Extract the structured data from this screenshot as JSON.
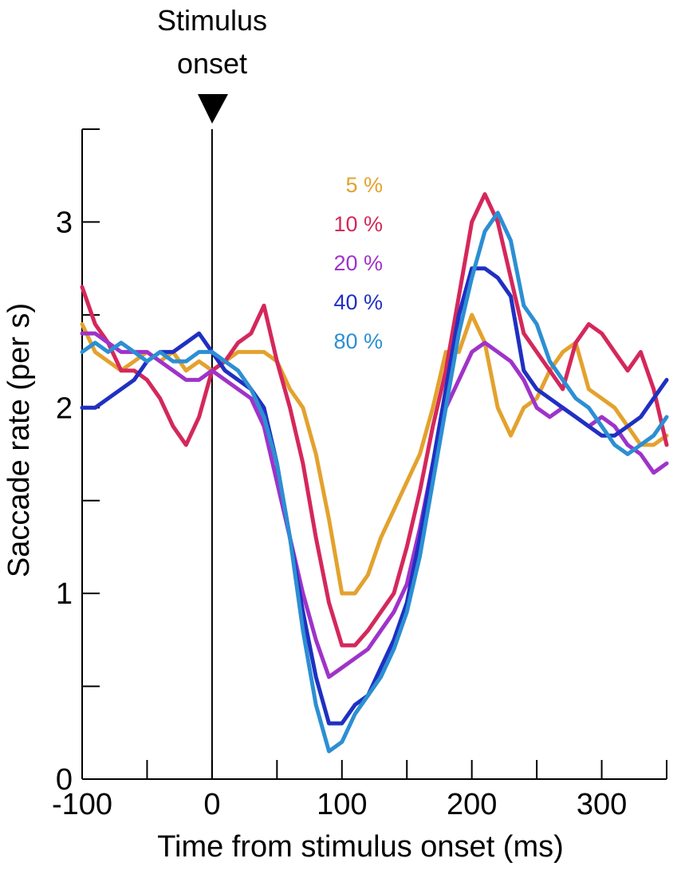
{
  "chart_data": {
    "type": "line",
    "title": "",
    "xlabel": "Time from stimulus onset (ms)",
    "ylabel": "Saccade rate (per s)",
    "xlim": [
      -100,
      350
    ],
    "ylim": [
      0,
      3.5
    ],
    "x_ticks": [
      -100,
      -50,
      0,
      50,
      100,
      150,
      200,
      250,
      300,
      350
    ],
    "x_tick_labels": [
      "-100",
      "0",
      "100",
      "200",
      "300"
    ],
    "x_tick_label_values": [
      -100,
      0,
      100,
      200,
      300
    ],
    "y_ticks": [
      0,
      0.5,
      1,
      1.5,
      2,
      2.5,
      3,
      3.5
    ],
    "y_tick_labels": [
      "0",
      "1",
      "2",
      "3"
    ],
    "y_tick_label_values": [
      0,
      1,
      2,
      3
    ],
    "grid": false,
    "legend_placement": "top-center",
    "annotation": {
      "label_line1": "Stimulus",
      "label_line2": "onset",
      "x": 0
    },
    "x": [
      -100,
      -90,
      -80,
      -70,
      -60,
      -50,
      -40,
      -30,
      -20,
      -10,
      0,
      10,
      20,
      30,
      40,
      50,
      60,
      70,
      80,
      90,
      100,
      110,
      120,
      130,
      140,
      150,
      160,
      170,
      180,
      190,
      200,
      210,
      220,
      230,
      240,
      250,
      260,
      270,
      280,
      290,
      300,
      310,
      320,
      330,
      340,
      350
    ],
    "series": [
      {
        "name": "5 %",
        "color": "#E3A22E",
        "values": [
          2.45,
          2.3,
          2.25,
          2.2,
          2.25,
          2.3,
          2.25,
          2.3,
          2.2,
          2.25,
          2.2,
          2.25,
          2.3,
          2.3,
          2.3,
          2.25,
          2.1,
          2.0,
          1.75,
          1.4,
          1.0,
          1.0,
          1.1,
          1.3,
          1.45,
          1.6,
          1.75,
          2.0,
          2.3,
          2.3,
          2.5,
          2.35,
          2.0,
          1.85,
          2.0,
          2.05,
          2.2,
          2.3,
          2.35,
          2.1,
          2.05,
          2.0,
          1.9,
          1.8,
          1.8,
          1.85
        ]
      },
      {
        "name": "10 %",
        "color": "#D4285B",
        "values": [
          2.65,
          2.45,
          2.35,
          2.2,
          2.2,
          2.15,
          2.05,
          1.9,
          1.8,
          1.95,
          2.2,
          2.25,
          2.35,
          2.4,
          2.55,
          2.25,
          2.0,
          1.7,
          1.3,
          0.95,
          0.72,
          0.72,
          0.8,
          0.9,
          1.0,
          1.25,
          1.55,
          1.9,
          2.2,
          2.6,
          3.0,
          3.15,
          3.0,
          2.7,
          2.4,
          2.3,
          2.2,
          2.1,
          2.35,
          2.45,
          2.4,
          2.3,
          2.2,
          2.3,
          2.1,
          1.8
        ]
      },
      {
        "name": "20 %",
        "color": "#9F33C9",
        "values": [
          2.4,
          2.4,
          2.35,
          2.3,
          2.3,
          2.3,
          2.25,
          2.2,
          2.15,
          2.15,
          2.2,
          2.15,
          2.1,
          2.05,
          1.9,
          1.6,
          1.3,
          1.0,
          0.75,
          0.55,
          0.6,
          0.65,
          0.7,
          0.8,
          0.9,
          1.05,
          1.35,
          1.7,
          2.0,
          2.15,
          2.3,
          2.35,
          2.3,
          2.25,
          2.15,
          2.0,
          1.95,
          2.0,
          1.95,
          1.9,
          1.95,
          1.9,
          1.8,
          1.75,
          1.65,
          1.7
        ]
      },
      {
        "name": "40 %",
        "color": "#1F30C2",
        "values": [
          2.0,
          2.0,
          2.05,
          2.1,
          2.15,
          2.25,
          2.3,
          2.3,
          2.35,
          2.4,
          2.3,
          2.2,
          2.15,
          2.1,
          2.0,
          1.7,
          1.3,
          0.9,
          0.55,
          0.3,
          0.3,
          0.4,
          0.45,
          0.6,
          0.75,
          0.95,
          1.3,
          1.7,
          2.1,
          2.5,
          2.75,
          2.75,
          2.7,
          2.6,
          2.2,
          2.1,
          2.05,
          2.0,
          1.95,
          1.9,
          1.85,
          1.85,
          1.9,
          1.95,
          2.05,
          2.15
        ]
      },
      {
        "name": "80 %",
        "color": "#2C8FD3",
        "values": [
          2.3,
          2.35,
          2.3,
          2.35,
          2.3,
          2.25,
          2.3,
          2.25,
          2.25,
          2.3,
          2.3,
          2.25,
          2.2,
          2.1,
          1.95,
          1.7,
          1.3,
          0.8,
          0.4,
          0.15,
          0.2,
          0.35,
          0.45,
          0.55,
          0.7,
          0.9,
          1.2,
          1.6,
          2.0,
          2.4,
          2.7,
          2.95,
          3.05,
          2.9,
          2.55,
          2.45,
          2.25,
          2.15,
          2.05,
          2.0,
          1.9,
          1.8,
          1.75,
          1.8,
          1.85,
          1.95
        ]
      }
    ]
  }
}
